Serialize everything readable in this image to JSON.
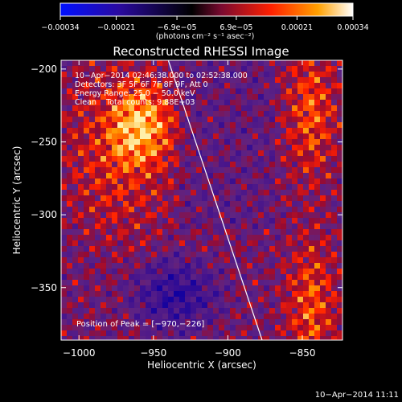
{
  "chart_data": {
    "type": "heatmap",
    "title": "Reconstructed RHESSI Image",
    "xlabel": "Heliocentric X (arcsec)",
    "ylabel": "Heliocentric Y (arcsec)",
    "xlim": [
      -1012,
      -823
    ],
    "ylim": [
      -386,
      -194
    ],
    "x_ticks": [
      -1000,
      -950,
      -900,
      -850
    ],
    "x_tick_labels": [
      "−1000",
      "−950",
      "−900",
      "−850"
    ],
    "y_ticks": [
      -200,
      -250,
      -300,
      -350
    ],
    "y_tick_labels": [
      "−200",
      "−250",
      "−300",
      "−350"
    ],
    "colorbar": {
      "ticks": [
        -0.00034,
        -0.00021,
        -6.9e-05,
        6.9e-05,
        0.00021,
        0.00034
      ],
      "tick_labels": [
        "−0.00034",
        "−0.00021",
        "−6.9e−05",
        "6.9e−05",
        "0.00021",
        "0.00034"
      ],
      "units_label": "(photons cm⁻² s⁻¹ asec⁻²)",
      "colors": [
        "#0010ff",
        "#2a0aa0",
        "#000000",
        "#7a0a30",
        "#ff2000",
        "#ffa000",
        "#ffffff"
      ]
    },
    "annotations": [
      "10−Apr−2014 02:46:38.000 to 02:52:38.000",
      "Detectors: 3F 5F 6F 7F 8F 9F, Att 0",
      "Energy Range: 25.0 − 50.0 keV",
      "Clean    Total counts: 9.88E+03"
    ],
    "peak_label": "Position of Peak = [−970,−226]",
    "limb_line": {
      "x": [
        -940,
        -877
      ],
      "y": [
        -194,
        -386
      ]
    },
    "timestamp": "10−Apr−2014 11:11",
    "grid": false
  }
}
